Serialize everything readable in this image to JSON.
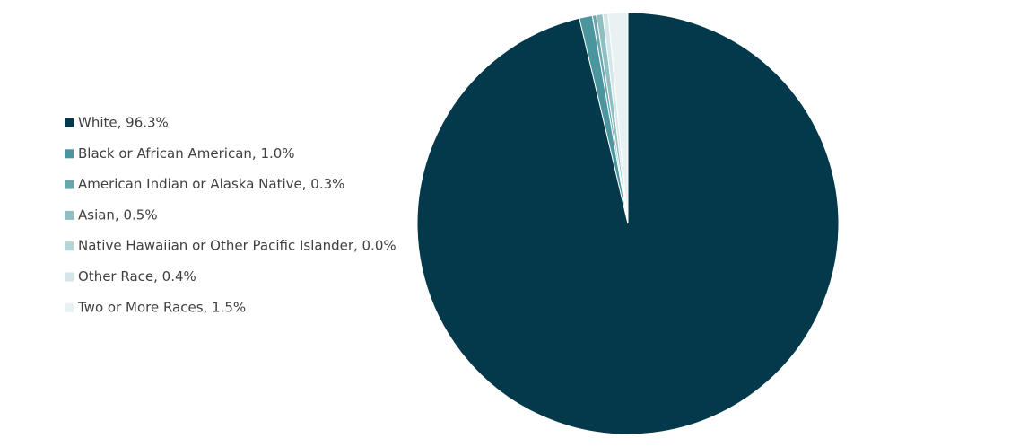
{
  "chart_data": {
    "type": "pie",
    "categories": [
      "White, 96.3%",
      "Black or African American, 1.0%",
      "American Indian or Alaska Native, 0.3%",
      "Asian, 0.5%",
      "Native Hawaiian or Other Pacific Islander, 0.0%",
      "Other Race, 0.4%",
      "Two or More Races, 1.5%"
    ],
    "values": [
      96.3,
      1.0,
      0.3,
      0.5,
      0.0,
      0.4,
      1.5
    ],
    "colors": [
      "#03394a",
      "#4a959e",
      "#6aa7ad",
      "#8fbfc3",
      "#b5d5d8",
      "#d5e6e8",
      "#e9f2f3"
    ],
    "legend": "left"
  }
}
